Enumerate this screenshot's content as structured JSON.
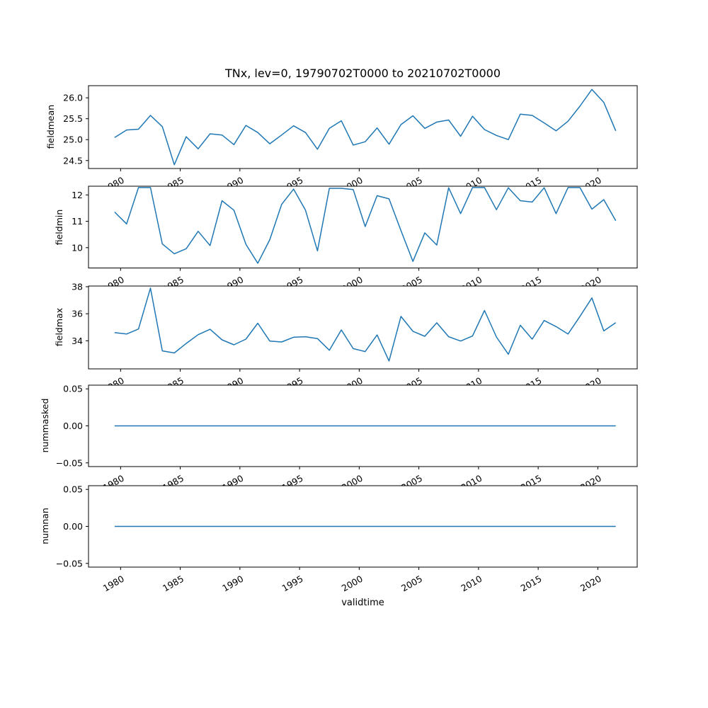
{
  "figure": {
    "title": "TNx, lev=0, 19790702T0000 to 20210702T0000",
    "xlabel": "validtime"
  },
  "chart_data": {
    "type": "line",
    "title": "TNx, lev=0, 19790702T0000 to 20210702T0000",
    "xlabel": "validtime",
    "legend": "none",
    "grid": false,
    "line_color": "#1f77b4",
    "x_years": [
      1979,
      1980,
      1981,
      1982,
      1983,
      1984,
      1985,
      1986,
      1987,
      1988,
      1989,
      1990,
      1991,
      1992,
      1993,
      1994,
      1995,
      1996,
      1997,
      1998,
      1999,
      2000,
      2001,
      2002,
      2003,
      2004,
      2005,
      2006,
      2007,
      2008,
      2009,
      2010,
      2011,
      2012,
      2013,
      2014,
      2015,
      2016,
      2017,
      2018,
      2019,
      2020,
      2021
    ],
    "x_offset": 0.5,
    "xlim": [
      1977.31,
      2023.3
    ],
    "xticks": [
      1980,
      1985,
      1990,
      1995,
      2000,
      2005,
      2010,
      2015,
      2020
    ],
    "xtick_labels": [
      "1980",
      "1985",
      "1990",
      "1995",
      "2000",
      "2005",
      "2010",
      "2015",
      "2020"
    ],
    "subplots": [
      {
        "ylabel": "fieldmean",
        "ylim": [
          24.31,
          26.29
        ],
        "yticks": [
          {
            "value": 24.5,
            "label": "24.5"
          },
          {
            "value": 25.0,
            "label": "25.0"
          },
          {
            "value": 25.5,
            "label": "25.5"
          },
          {
            "value": 26.0,
            "label": "26.0"
          }
        ],
        "values": [
          25.05,
          25.23,
          25.25,
          25.58,
          25.31,
          24.4,
          25.07,
          24.78,
          25.14,
          25.11,
          24.88,
          25.34,
          25.17,
          24.9,
          25.11,
          25.33,
          25.17,
          24.77,
          25.27,
          25.45,
          24.87,
          24.95,
          25.28,
          24.89,
          25.36,
          25.57,
          25.27,
          25.42,
          25.47,
          25.08,
          25.56,
          25.24,
          25.1,
          25.0,
          25.61,
          25.58,
          25.4,
          25.21,
          25.44,
          25.8,
          26.2,
          25.89,
          25.21
        ]
      },
      {
        "ylabel": "fieldmin",
        "ylim": [
          9.23,
          12.33
        ],
        "yticks": [
          {
            "value": 10,
            "label": "10"
          },
          {
            "value": 11,
            "label": "11"
          },
          {
            "value": 12,
            "label": "12"
          }
        ],
        "values": [
          11.35,
          10.9,
          12.28,
          12.28,
          10.14,
          9.77,
          9.96,
          10.62,
          10.08,
          11.78,
          11.42,
          10.13,
          9.41,
          10.3,
          11.64,
          12.22,
          11.42,
          9.88,
          12.25,
          12.25,
          12.2,
          10.8,
          11.97,
          11.85,
          10.65,
          9.48,
          10.56,
          10.1,
          12.27,
          11.29,
          12.28,
          12.28,
          11.44,
          12.27,
          11.78,
          11.73,
          12.27,
          11.29,
          12.28,
          12.28,
          11.46,
          11.82,
          11.02
        ]
      },
      {
        "ylabel": "fieldmax",
        "ylim": [
          31.92,
          38.05
        ],
        "yticks": [
          {
            "value": 34,
            "label": "34"
          },
          {
            "value": 36,
            "label": "36"
          },
          {
            "value": 38,
            "label": "38"
          }
        ],
        "values": [
          34.6,
          34.5,
          34.87,
          37.9,
          33.25,
          33.1,
          33.8,
          34.45,
          34.85,
          34.07,
          33.7,
          34.12,
          35.3,
          33.98,
          33.91,
          34.26,
          34.3,
          34.16,
          33.3,
          34.8,
          33.42,
          33.2,
          34.43,
          32.5,
          35.8,
          34.7,
          34.33,
          35.33,
          34.3,
          33.98,
          34.35,
          36.24,
          34.28,
          33.0,
          35.15,
          34.12,
          35.5,
          35.05,
          34.5,
          35.8,
          37.17,
          34.73,
          35.34
        ]
      },
      {
        "ylabel": "nummasked",
        "ylim": [
          -0.055,
          0.055
        ],
        "yticks": [
          {
            "value": -0.05,
            "label": "−0.05"
          },
          {
            "value": 0,
            "label": "0.00"
          },
          {
            "value": 0.05,
            "label": "0.05"
          }
        ],
        "values": [
          0,
          0,
          0,
          0,
          0,
          0,
          0,
          0,
          0,
          0,
          0,
          0,
          0,
          0,
          0,
          0,
          0,
          0,
          0,
          0,
          0,
          0,
          0,
          0,
          0,
          0,
          0,
          0,
          0,
          0,
          0,
          0,
          0,
          0,
          0,
          0,
          0,
          0,
          0,
          0,
          0,
          0,
          0
        ]
      },
      {
        "ylabel": "numnan",
        "ylim": [
          -0.055,
          0.055
        ],
        "yticks": [
          {
            "value": -0.05,
            "label": "−0.05"
          },
          {
            "value": 0,
            "label": "0.00"
          },
          {
            "value": 0.05,
            "label": "0.05"
          }
        ],
        "values": [
          0,
          0,
          0,
          0,
          0,
          0,
          0,
          0,
          0,
          0,
          0,
          0,
          0,
          0,
          0,
          0,
          0,
          0,
          0,
          0,
          0,
          0,
          0,
          0,
          0,
          0,
          0,
          0,
          0,
          0,
          0,
          0,
          0,
          0,
          0,
          0,
          0,
          0,
          0,
          0,
          0,
          0,
          0
        ]
      }
    ]
  }
}
